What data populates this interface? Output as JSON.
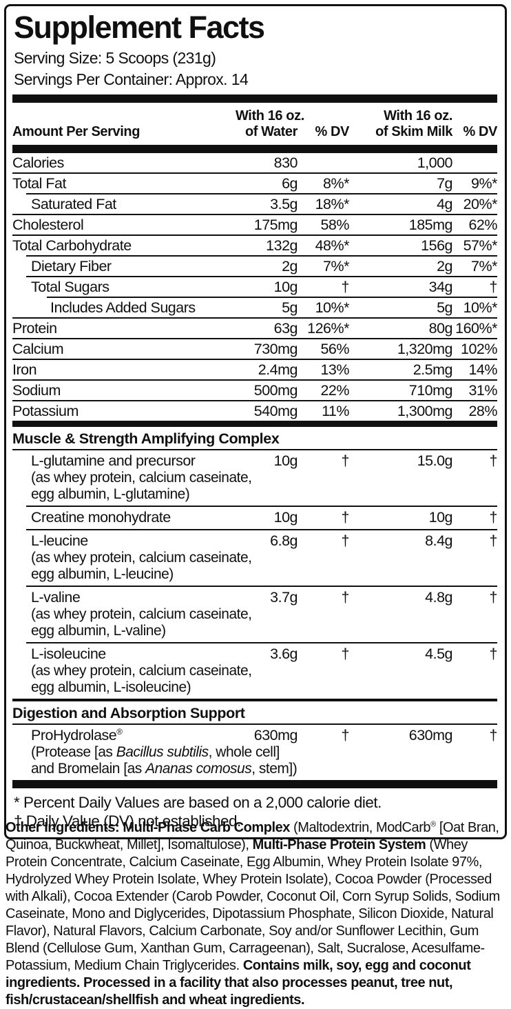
{
  "label": {
    "title": "Supplement Facts",
    "serving_size": "Serving Size: 5 Scoops (231g)",
    "servings_per_container": "Servings Per Container: Approx. 14",
    "columns": {
      "amount_per_serving": "Amount Per Serving",
      "water_line1": "With 16 oz.",
      "water_line2": "of Water",
      "dv_water": "% DV",
      "milk_line1": "With 16 oz.",
      "milk_line2": "of Skim Milk",
      "dv_milk": "% DV"
    },
    "nutrients": [
      {
        "name": "Calories",
        "indent": 0,
        "water": "830",
        "water_dv": "",
        "milk": "1,000",
        "milk_dv": ""
      },
      {
        "name": "Total Fat",
        "indent": 0,
        "water": "6g",
        "water_dv": "8%*",
        "milk": "7g",
        "milk_dv": "9%*"
      },
      {
        "name": "Saturated Fat",
        "indent": 1,
        "water": "3.5g",
        "water_dv": "18%*",
        "milk": "4g",
        "milk_dv": "20%*"
      },
      {
        "name": "Cholesterol",
        "indent": 0,
        "water": "175mg",
        "water_dv": "58%",
        "milk": "185mg",
        "milk_dv": "62%"
      },
      {
        "name": "Total Carbohydrate",
        "indent": 0,
        "water": "132g",
        "water_dv": "48%*",
        "milk": "156g",
        "milk_dv": "57%*"
      },
      {
        "name": "Dietary Fiber",
        "indent": 1,
        "water": "2g",
        "water_dv": "7%*",
        "milk": "2g",
        "milk_dv": "7%*"
      },
      {
        "name": "Total Sugars",
        "indent": 1,
        "water": "10g",
        "water_dv": "†",
        "milk": "34g",
        "milk_dv": "†"
      },
      {
        "name": "Includes Added Sugars",
        "indent": 2,
        "water": "5g",
        "water_dv": "10%*",
        "milk": "5g",
        "milk_dv": "10%*"
      },
      {
        "name": "Protein",
        "indent": 0,
        "water": "63g",
        "water_dv": "126%*",
        "milk": "80g",
        "milk_dv": "160%*"
      },
      {
        "name": "Calcium",
        "indent": 0,
        "water": "730mg",
        "water_dv": "56%",
        "milk": "1,320mg",
        "milk_dv": "102%"
      },
      {
        "name": "Iron",
        "indent": 0,
        "water": "2.4mg",
        "water_dv": "13%",
        "milk": "2.5mg",
        "milk_dv": "14%"
      },
      {
        "name": "Sodium",
        "indent": 0,
        "water": "500mg",
        "water_dv": "22%",
        "milk": "710mg",
        "milk_dv": "31%"
      },
      {
        "name": "Potassium",
        "indent": 0,
        "water": "540mg",
        "water_dv": "11%",
        "milk": "1,300mg",
        "milk_dv": "28%"
      }
    ],
    "sections": [
      {
        "heading": "Muscle & Strength Amplifying Complex",
        "divider": "heavy",
        "rows": [
          {
            "name": "L-glutamine and precursor",
            "water": "10g",
            "water_dv": "†",
            "milk": "15.0g",
            "milk_dv": "†",
            "desc": [
              [
                {
                  "t": "(as whey protein, calcium caseinate,"
                }
              ],
              [
                {
                  "t": "egg albumin, L-glutamine)"
                }
              ]
            ]
          },
          {
            "name": "Creatine monohydrate",
            "water": "10g",
            "water_dv": "†",
            "milk": "10g",
            "milk_dv": "†",
            "desc": []
          },
          {
            "name": "L-leucine",
            "water": "6.8g",
            "water_dv": "†",
            "milk": "8.4g",
            "milk_dv": "†",
            "desc": [
              [
                {
                  "t": "(as whey protein, calcium caseinate,"
                }
              ],
              [
                {
                  "t": "egg albumin, L-leucine)"
                }
              ]
            ]
          },
          {
            "name": "L-valine",
            "water": "3.7g",
            "water_dv": "†",
            "milk": "4.8g",
            "milk_dv": "†",
            "desc": [
              [
                {
                  "t": "(as whey protein, calcium caseinate,"
                }
              ],
              [
                {
                  "t": "egg albumin, L-valine)"
                }
              ]
            ]
          },
          {
            "name": "L-isoleucine",
            "water": "3.6g",
            "water_dv": "†",
            "milk": "4.5g",
            "milk_dv": "†",
            "desc": [
              [
                {
                  "t": "(as whey protein, calcium caseinate,"
                }
              ],
              [
                {
                  "t": "egg albumin, L-isoleucine)"
                }
              ]
            ]
          }
        ]
      },
      {
        "heading": "Digestion and Absorption Support",
        "divider": "medium",
        "rows": [
          {
            "name": "ProHydrolase",
            "sup": "®",
            "water": "630mg",
            "water_dv": "†",
            "milk": "630mg",
            "milk_dv": "†",
            "desc": [
              [
                {
                  "t": "(Protease [as "
                },
                {
                  "t": "Bacillus subtilis",
                  "i": true
                },
                {
                  "t": ", whole cell]"
                }
              ],
              [
                {
                  "t": "and Bromelain [as "
                },
                {
                  "t": "Ananas comosus",
                  "i": true
                },
                {
                  "t": ", stem])"
                }
              ]
            ]
          }
        ]
      }
    ],
    "footnotes": [
      "* Percent Daily Values are based on a 2,000 calorie diet.",
      "† Daily Value (DV) not established."
    ],
    "other_ingredients_segments": [
      {
        "t": "Other Ingredients: Multi-Phase Carb Complex",
        "b": true
      },
      {
        "t": " (Maltodextrin, ModCarb"
      },
      {
        "t": "®",
        "sup": true
      },
      {
        "t": " [Oat Bran, Quinoa, Buckwheat, Millet], Isomaltulose), "
      },
      {
        "t": "Multi-Phase Protein System",
        "b": true
      },
      {
        "t": " (Whey Protein Concentrate, Calcium Caseinate, Egg Albumin, Whey Protein Isolate 97%, Hydrolyzed Whey Protein Isolate, Whey Protein Isolate), Cocoa Powder (Processed with Alkali), Cocoa Extender (Carob Powder, Coconut Oil, Corn Syrup Solids, Sodium Caseinate, Mono and Diglycerides, Dipotassium Phosphate, Silicon Dioxide, Natural Flavor), Natural Flavors, Calcium Carbonate, Soy and/or Sunflower Lecithin, Gum Blend (Cellulose Gum, Xanthan Gum, Carrageenan), Salt, Sucralose, Acesulfame-Potassium, Medium Chain Triglycerides. "
      },
      {
        "t": "Contains milk, soy, egg and coconut ingredients. Processed in a facility that also processes peanut, tree nut, fish/crustacean/shellfish and wheat ingredients.",
        "b": true
      }
    ]
  }
}
